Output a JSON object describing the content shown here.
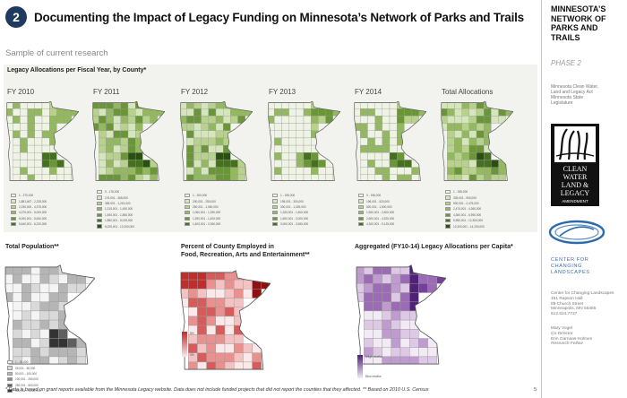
{
  "header": {
    "badge": "2",
    "title": "Documenting the Impact of Legacy Funding on Minnesota’s Network of Parks and Trails"
  },
  "subtitle": "Sample of current research",
  "allocations": {
    "label": "Legacy Allocations per Fiscal Year, by County*",
    "maps": [
      {
        "year": "FY 2010",
        "legend": [
          "1 - 270,000",
          "1,881,667 - 2,235,000",
          "2,235,000 - 4,375,000",
          "4,375,001 - 5,000,000",
          "5,000,001 - 5,640,000",
          "5,640,001 - 6,220,000"
        ]
      },
      {
        "year": "FY 2011",
        "legend": [
          "0 - 176,000",
          "176,001 - 365,000",
          "365,001 - 1,215,000",
          "1,215,001 - 1,450,000",
          "1,450,001 - 1,850,000",
          "1,850,001 - 5,025,000",
          "5,025,001 - 12,000,000"
        ]
      },
      {
        "year": "FY 2012",
        "legend": [
          "1 - 200,000",
          "200,001 - 250,000",
          "250,001 - 1,060,000",
          "1,060,001 - 1,250,000",
          "1,250,001 - 1,400,000",
          "1,400,001 - 2,060,000"
        ]
      },
      {
        "year": "FY 2013",
        "legend": [
          "1 - 195,000",
          "195,001 - 300,000",
          "300,001 - 1,325,000",
          "1,325,001 - 1,600,000",
          "1,600,001 - 3,000,000",
          "3,000,001 - 3,650,000"
        ]
      },
      {
        "year": "FY 2014",
        "legend": [
          "0 - 196,000",
          "196,001 - 520,000",
          "520,001 - 1,500,000",
          "1,500,001 - 2,600,000",
          "2,600,001 - 4,320,000",
          "4,320,001 - 9,125,000"
        ]
      },
      {
        "year": "Total Allocations",
        "legend": [
          "1 - 335,000",
          "335,001 - 900,000",
          "900,001 - 2,475,000",
          "2,475,001 - 4,360,000",
          "4,360,001 - 6,950,000",
          "6,950,001 - 12,300,000",
          "12,300,001 - 14,200,000"
        ]
      }
    ]
  },
  "population": {
    "title": "Total Population**",
    "legend": [
      "1 - 25,000",
      "25,001 - 50,000",
      "50,001 - 100,000",
      "100,001 - 250,000",
      "250,001 - 500,000",
      "500,001 - 1,200,000"
    ]
  },
  "employed": {
    "title_line1": "Percent of County Employed in",
    "title_line2": "Food, Recreation, Arts and Entertainment**",
    "legend_high": "8%",
    "legend_low": "0%"
  },
  "percapita": {
    "title": "Aggregated (FY10-14) Legacy Allocations per Capita*",
    "legend_high": "$high relative",
    "legend_low": "$low relative"
  },
  "footnote": "* Data is based on grant reports available from the Minnesota Legacy website. Data does not include funded projects that did not report the counties that they affected. ** Based on 2010 U.S. Census",
  "page_number": "5",
  "sidebar": {
    "title_lines": [
      "MINNESOTA’S",
      "NETWORK OF",
      "PARKS AND",
      "TRAILS"
    ],
    "phase": "PHASE 2",
    "sponsor_lines": [
      "Minnesota Clean Water,",
      "Land and Legacy Act",
      "Minnesota State",
      "Legislature"
    ],
    "legacy_logo_words": [
      "CLEAN",
      "WATER",
      "LAND &",
      "LEGACY",
      "AMENDMENT"
    ],
    "ccl_lines": [
      "CENTER FOR",
      "CHANGING",
      "LANDSCAPES"
    ],
    "address_lines": [
      "Center for Changing Landscapes",
      "161 Rapson Hall",
      "89 Church Street",
      "Minneapolis, MN 55455",
      "612.624.7737"
    ],
    "people": [
      {
        "name": "Mary Vogel",
        "role": "Co-Director"
      },
      {
        "name": "Erin Garnaas-Holmes",
        "role": "Research Fellow"
      }
    ]
  },
  "colors": {
    "green": [
      "#eef3e4",
      "#d6e6bc",
      "#b8d28e",
      "#93b860",
      "#6a9638",
      "#44701f",
      "#2b4f10"
    ],
    "gray": [
      "#f4f4f4",
      "#d9d9d9",
      "#b5b5b5",
      "#8c8c8c",
      "#5e5e5e",
      "#333333"
    ],
    "red": [
      "#fbe9e9",
      "#f3c2c2",
      "#e8918f",
      "#d85b5b",
      "#c12c2c",
      "#8e1010"
    ],
    "purple": [
      "#f2eaf5",
      "#ddc8e6",
      "#bf9bd0",
      "#9c6bb5",
      "#74409a",
      "#4e2275"
    ]
  }
}
